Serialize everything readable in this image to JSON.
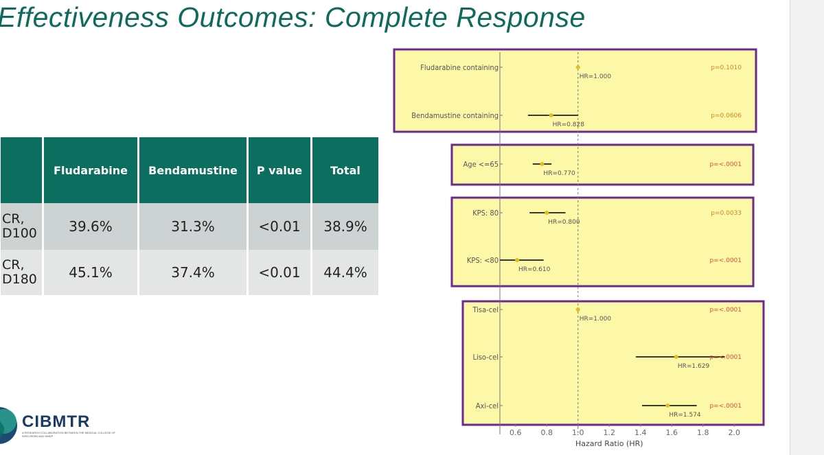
{
  "title": "Effectiveness Outcomes: Complete Response",
  "table": {
    "headers": [
      "",
      "Fludarabine",
      "Bendamustine",
      "P value",
      "Total"
    ],
    "rows": [
      {
        "label_line1": "CR,",
        "label_line2": "D100",
        "fludarabine": "39.6%",
        "bendamustine": "31.3%",
        "p_value": "<0.01",
        "total": "38.9%"
      },
      {
        "label_line1": "CR,",
        "label_line2": "D180",
        "fludarabine": "45.1%",
        "bendamustine": "37.4%",
        "p_value": "<0.01",
        "total": "44.4%"
      }
    ]
  },
  "logo": {
    "name": "CIBMTR",
    "tagline": "A RESEARCH COLLABORATION BETWEEN THE MEDICAL COLLEGE OF WISCONSIN AND NMDP",
    "icon": "cibmtr-logo-mark"
  },
  "chart_data": {
    "type": "forest",
    "xlabel": "Hazard Ratio (HR)",
    "xlim": [
      0.5,
      2.1
    ],
    "xticks": [
      0.6,
      0.8,
      1.0,
      1.2,
      1.4,
      1.6,
      1.8,
      2.0
    ],
    "xtick_labels": [
      "0.6",
      "0.8",
      "1.0",
      "1.2",
      "1.4",
      "1.6",
      "1.8",
      "2.0"
    ],
    "reference_lines": [
      0.5,
      1.0
    ],
    "colors": {
      "panel": "#fdf7a8",
      "border": "#6a2a8f",
      "point": "#e0c020",
      "ci": "#3a3a2a",
      "p_significant": "#e0503a",
      "p_other": "#d08a20"
    },
    "groups": [
      {
        "rows": [
          {
            "label": "Fludarabine containing",
            "hr": 1.0,
            "ci_low": null,
            "ci_high": null,
            "hr_label": "HR=1.000",
            "p_label": "p=0.1010"
          },
          {
            "label": "Bendamustine containing",
            "hr": 0.828,
            "ci_low": 0.68,
            "ci_high": 1.0,
            "hr_label": "HR=0.828",
            "p_label": "p=0.0606"
          }
        ]
      },
      {
        "rows": [
          {
            "label": "Age <=65",
            "hr": 0.77,
            "ci_low": 0.71,
            "ci_high": 0.83,
            "hr_label": "HR=0.770",
            "p_label": "p=<.0001"
          }
        ]
      },
      {
        "rows": [
          {
            "label": "KPS: 80",
            "hr": 0.8,
            "ci_low": 0.69,
            "ci_high": 0.92,
            "hr_label": "HR=0.800",
            "p_label": "p=0.0033"
          },
          {
            "label": "KPS: <80",
            "hr": 0.61,
            "ci_low": 0.5,
            "ci_high": 0.78,
            "hr_label": "HR=0.610",
            "p_label": "p=<.0001"
          }
        ]
      },
      {
        "rows": [
          {
            "label": "Tisa-cel",
            "hr": 1.0,
            "ci_low": null,
            "ci_high": null,
            "hr_label": "HR=1.000",
            "p_label": "p=<.0001"
          },
          {
            "label": "Liso-cel",
            "hr": 1.629,
            "ci_low": 1.37,
            "ci_high": 1.94,
            "hr_label": "HR=1.629",
            "p_label": "p=<.0001"
          },
          {
            "label": "Axi-cel",
            "hr": 1.574,
            "ci_low": 1.41,
            "ci_high": 1.76,
            "hr_label": "HR=1.574",
            "p_label": "p=<.0001"
          }
        ]
      }
    ]
  }
}
